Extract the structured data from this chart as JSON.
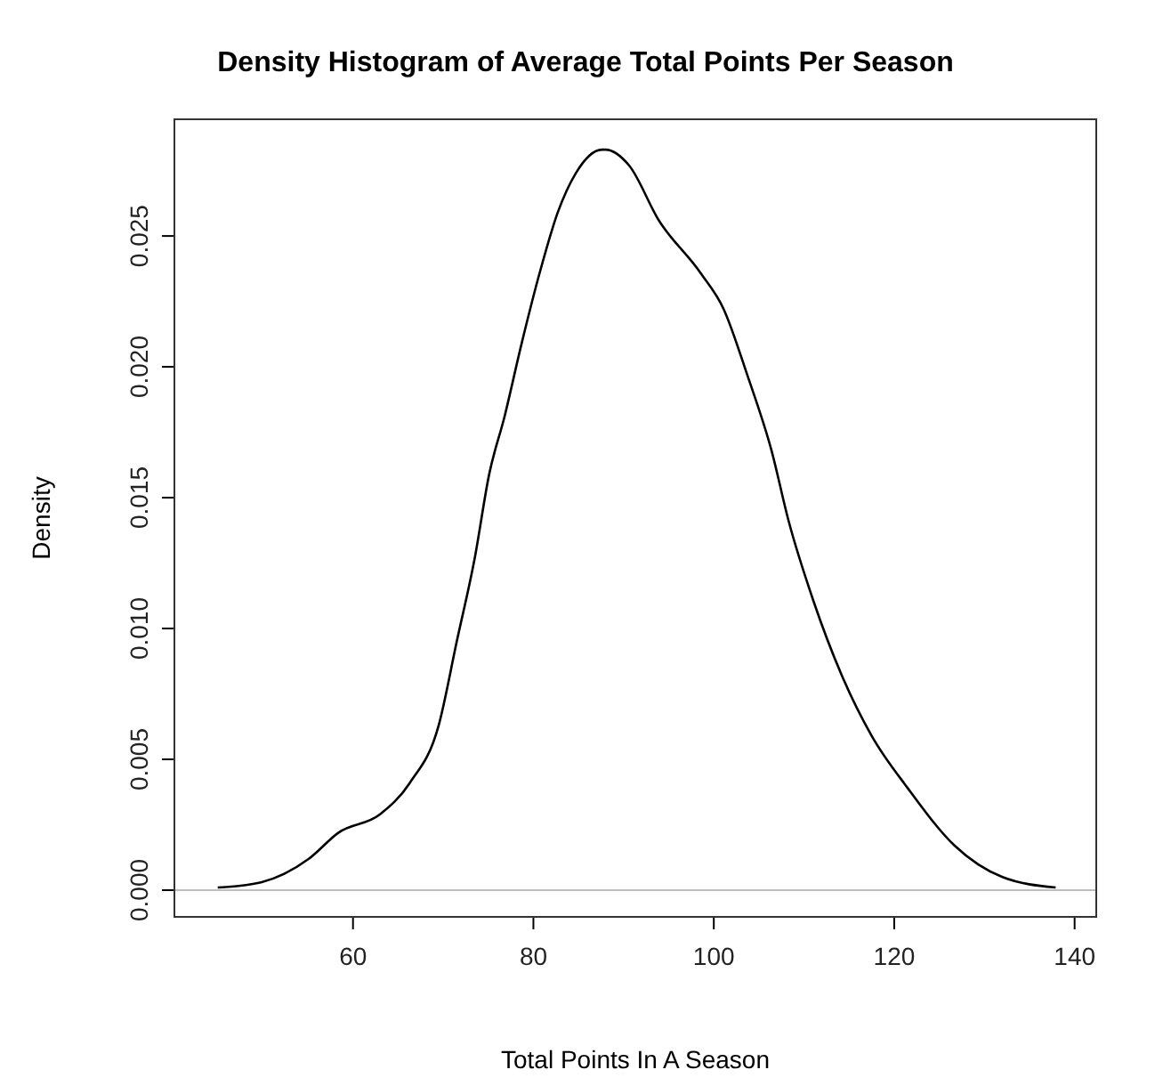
{
  "chart_data": {
    "type": "line",
    "title": "Density Histogram of Average Total Points Per Season",
    "xlabel": "Total Points In A Season",
    "ylabel": "Density",
    "xlim": [
      40.2,
      142.4
    ],
    "xticks": [
      60,
      80,
      100,
      120,
      140
    ],
    "ylim": [
      -0.00102,
      0.02946
    ],
    "yticks": [
      {
        "value": 0,
        "label": "0.000"
      },
      {
        "value": 0.005,
        "label": "0.005"
      },
      {
        "value": 0.01,
        "label": "0.010"
      },
      {
        "value": 0.015,
        "label": "0.015"
      },
      {
        "value": 0.02,
        "label": "0.020"
      },
      {
        "value": 0.025,
        "label": "0.025"
      }
    ],
    "ref_lines": [
      {
        "axis": "y",
        "value": 0,
        "color": "#bebebe"
      }
    ],
    "series": [
      {
        "color": "#000000",
        "x": [
          45.0,
          49.8,
          55.1,
          58.4,
          63.0,
          66.3,
          69.5,
          71.5,
          73.5,
          75.1,
          76.8,
          78.7,
          80.7,
          82.7,
          84.7,
          87.6,
          88.0,
          90.6,
          93.9,
          98.5,
          101.1,
          103.7,
          106.4,
          108.3,
          111.0,
          114.2,
          117.5,
          121.5,
          126.7,
          132.0,
          137.9
        ],
        "values": [
          0.0001,
          0.0003,
          0.0012,
          0.0022,
          0.0029,
          0.0041,
          0.0063,
          0.0095,
          0.0127,
          0.0159,
          0.0181,
          0.0209,
          0.0236,
          0.0259,
          0.0274,
          0.0283,
          0.0283,
          0.0277,
          0.0256,
          0.0236,
          0.0222,
          0.0197,
          0.0168,
          0.0141,
          0.0111,
          0.0082,
          0.0059,
          0.0039,
          0.0017,
          0.0005,
          0.0001
        ]
      }
    ]
  }
}
